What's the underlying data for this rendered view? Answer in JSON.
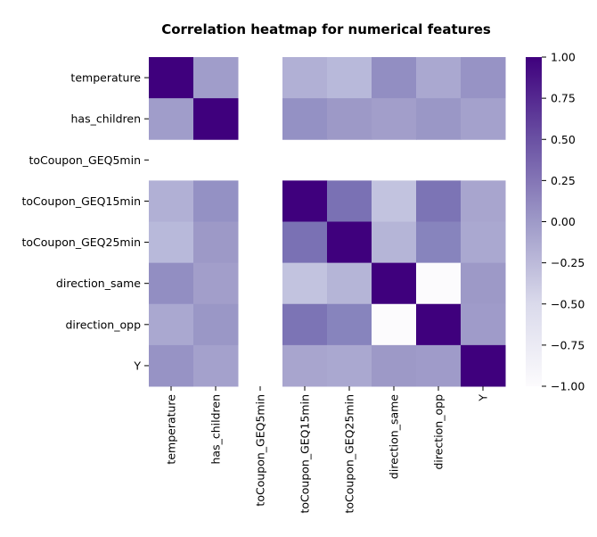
{
  "chart_data": {
    "type": "heatmap",
    "title": "Correlation heatmap for numerical features",
    "xlabel": "",
    "ylabel": "",
    "labels": [
      "temperature",
      "has_children",
      "toCoupon_GEQ5min",
      "toCoupon_GEQ15min",
      "toCoupon_GEQ25min",
      "direction_same",
      "direction_opp",
      "Y"
    ],
    "matrix": [
      [
        1.0,
        -0.02,
        null,
        -0.16,
        -0.22,
        0.1,
        -0.1,
        0.06
      ],
      [
        -0.02,
        1.0,
        null,
        0.08,
        0.01,
        -0.03,
        0.03,
        -0.05
      ],
      [
        null,
        null,
        null,
        null,
        null,
        null,
        null,
        null
      ],
      [
        -0.16,
        0.08,
        null,
        1.0,
        0.32,
        -0.3,
        0.3,
        -0.08
      ],
      [
        -0.22,
        0.01,
        null,
        0.32,
        1.0,
        -0.19,
        0.19,
        -0.1
      ],
      [
        0.1,
        -0.03,
        null,
        -0.3,
        -0.19,
        1.0,
        -1.0,
        0.01
      ],
      [
        -0.1,
        0.03,
        null,
        0.3,
        0.19,
        -1.0,
        1.0,
        -0.01
      ],
      [
        0.06,
        -0.05,
        null,
        -0.08,
        -0.1,
        0.01,
        -0.01,
        1.0
      ]
    ],
    "vmin": -1.0,
    "vmax": 1.0,
    "colormap": "Purples",
    "colorbar_ticks": [
      "1.00",
      "0.75",
      "0.50",
      "0.25",
      "0.00",
      "−0.25",
      "−0.50",
      "−0.75",
      "−1.00"
    ],
    "colorbar_values": [
      1.0,
      0.75,
      0.5,
      0.25,
      0.0,
      -0.25,
      -0.5,
      -0.75,
      -1.0
    ],
    "grid": false
  }
}
